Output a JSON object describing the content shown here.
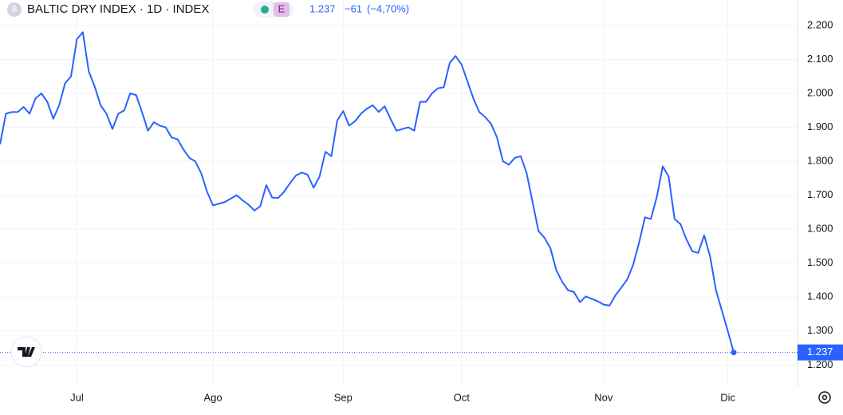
{
  "header": {
    "logo": "B",
    "symbol": "BALTIC DRY INDEX · 1D · INDEX",
    "badge": "E",
    "last": "1.237",
    "change": "−61",
    "change_pct": "(−4,70%)"
  },
  "chart_data": {
    "type": "line",
    "color": "#2962ff",
    "grid": true,
    "ylim": [
      1135,
      2275
    ],
    "yticks": [
      {
        "value": 1200,
        "label": "1.200"
      },
      {
        "value": 1300,
        "label": "1.300"
      },
      {
        "value": 1400,
        "label": "1.400"
      },
      {
        "value": 1500,
        "label": "1.500"
      },
      {
        "value": 1600,
        "label": "1.600"
      },
      {
        "value": 1700,
        "label": "1.700"
      },
      {
        "value": 1800,
        "label": "1.800"
      },
      {
        "value": 1900,
        "label": "1.900"
      },
      {
        "value": 2000,
        "label": "2.000"
      },
      {
        "value": 2100,
        "label": "2.100"
      },
      {
        "value": 2200,
        "label": "2.200"
      }
    ],
    "categories": [
      null,
      null,
      null,
      null,
      null,
      null,
      null,
      null,
      null,
      null,
      null,
      null,
      null,
      "Jul",
      null,
      null,
      null,
      null,
      null,
      null,
      null,
      null,
      null,
      null,
      null,
      null,
      null,
      null,
      null,
      null,
      null,
      null,
      null,
      null,
      null,
      null,
      "Ago",
      null,
      null,
      null,
      null,
      null,
      null,
      null,
      null,
      null,
      null,
      null,
      null,
      null,
      null,
      null,
      null,
      null,
      null,
      null,
      null,
      null,
      "Sep",
      null,
      null,
      null,
      null,
      null,
      null,
      null,
      null,
      null,
      null,
      null,
      null,
      null,
      null,
      null,
      null,
      null,
      null,
      null,
      "Oct",
      null,
      null,
      null,
      null,
      null,
      null,
      null,
      null,
      null,
      null,
      null,
      null,
      null,
      null,
      null,
      null,
      null,
      null,
      null,
      null,
      null,
      null,
      null,
      "Nov",
      null,
      null,
      null,
      null,
      null,
      null,
      null,
      null,
      null,
      null,
      null,
      null,
      null,
      null,
      null,
      null,
      null,
      null,
      null,
      null,
      "Dic",
      null
    ],
    "values": [
      1850,
      1940,
      1945,
      1945,
      1960,
      1940,
      1985,
      2000,
      1975,
      1925,
      1965,
      2030,
      2050,
      2160,
      2180,
      2065,
      2020,
      1965,
      1940,
      1895,
      1940,
      1950,
      2000,
      1995,
      1945,
      1890,
      1915,
      1905,
      1900,
      1870,
      1865,
      1835,
      1810,
      1800,
      1765,
      1710,
      1670,
      1675,
      1680,
      1690,
      1700,
      1685,
      1672,
      1655,
      1668,
      1730,
      1693,
      1692,
      1710,
      1735,
      1758,
      1767,
      1760,
      1722,
      1755,
      1828,
      1815,
      1920,
      1948,
      1905,
      1918,
      1940,
      1955,
      1965,
      1945,
      1962,
      1925,
      1890,
      1895,
      1900,
      1890,
      1975,
      1975,
      2000,
      2015,
      2018,
      2090,
      2110,
      2085,
      2035,
      1985,
      1945,
      1930,
      1910,
      1870,
      1800,
      1790,
      1810,
      1815,
      1765,
      1680,
      1595,
      1575,
      1545,
      1480,
      1445,
      1420,
      1415,
      1385,
      1402,
      1395,
      1388,
      1378,
      1375,
      1405,
      1428,
      1452,
      1495,
      1560,
      1635,
      1630,
      1695,
      1785,
      1755,
      1630,
      1615,
      1570,
      1535,
      1530,
      1582,
      1520,
      1420,
      1360,
      1300,
      1237
    ]
  }
}
